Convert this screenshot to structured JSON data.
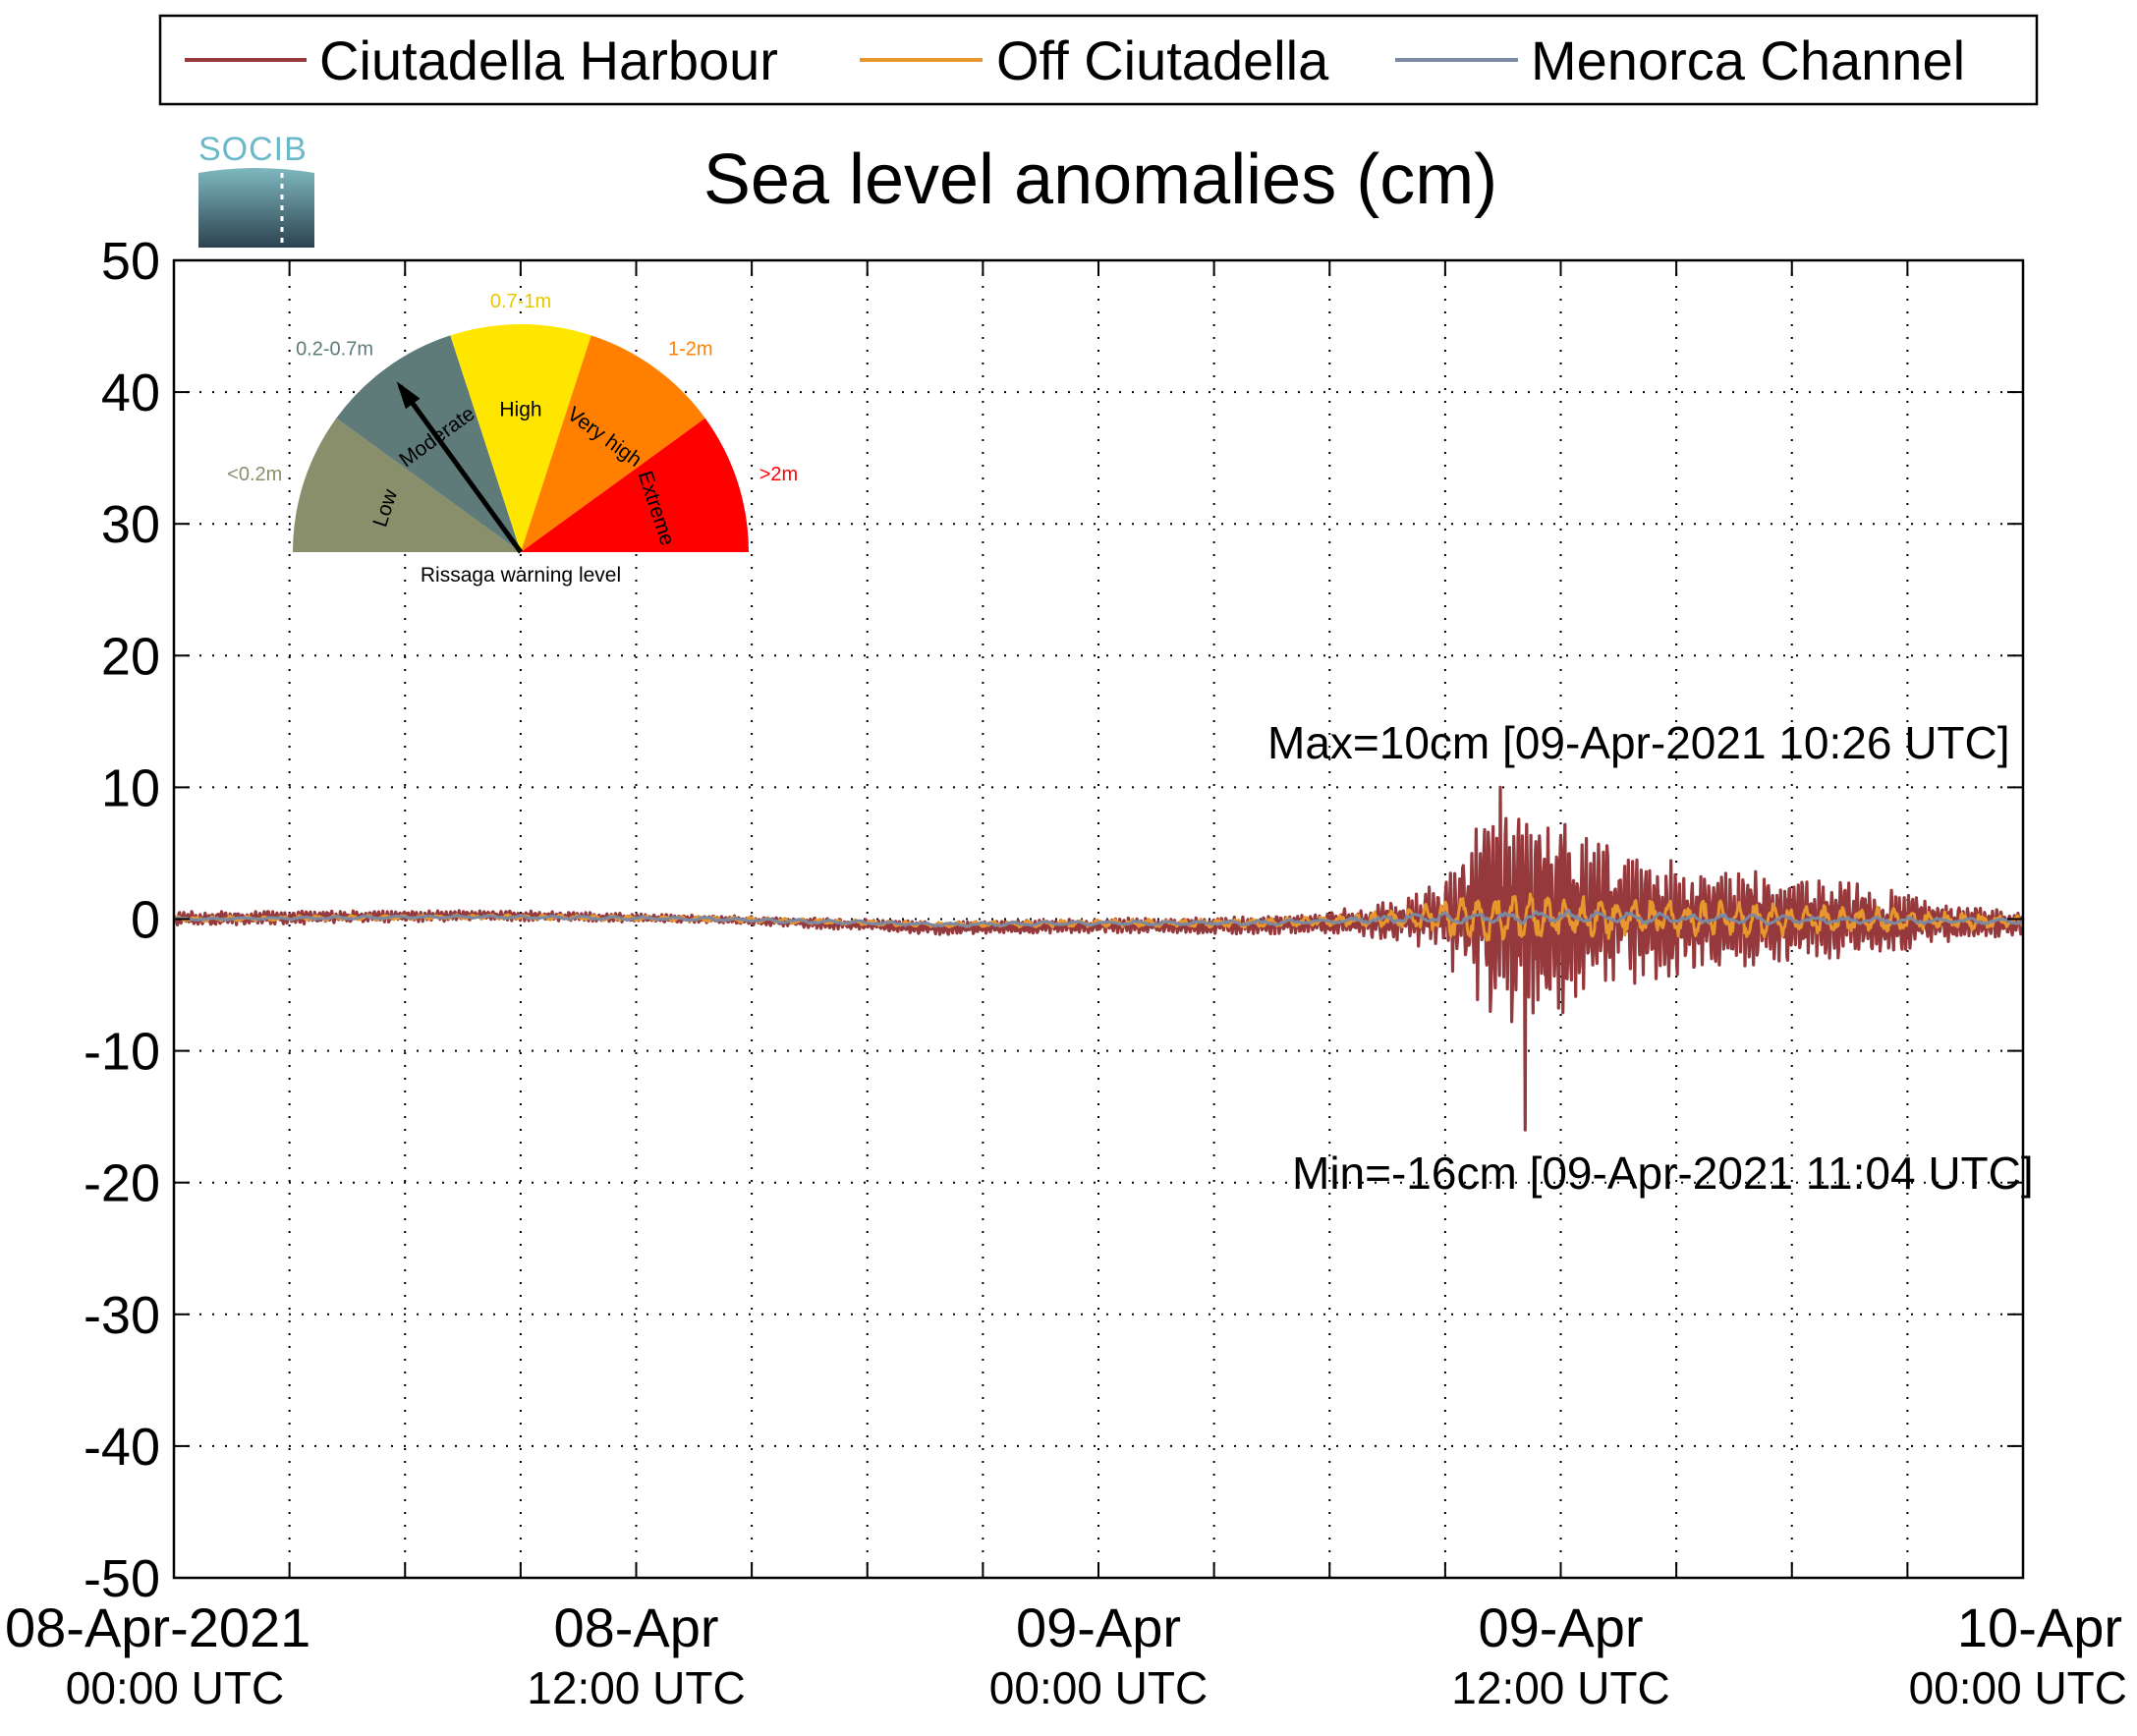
{
  "chart_data": {
    "type": "line",
    "title": "Sea level anomalies (cm)",
    "ylim": [
      -50,
      50
    ],
    "yticks": [
      -50,
      -40,
      -30,
      -20,
      -10,
      0,
      10,
      20,
      30,
      40,
      50
    ],
    "xlim_hours": [
      0,
      48
    ],
    "grid": true,
    "legend_position": "top",
    "xtick_labels": [
      {
        "hour": 0,
        "line1": "08-Apr-2021",
        "line2": "00:00 UTC"
      },
      {
        "hour": 12,
        "line1": "08-Apr",
        "line2": "12:00 UTC"
      },
      {
        "hour": 24,
        "line1": "09-Apr",
        "line2": "00:00 UTC"
      },
      {
        "hour": 36,
        "line1": "09-Apr",
        "line2": "12:00 UTC"
      },
      {
        "hour": 48,
        "line1": "10-Apr",
        "line2": "00:00 UTC"
      }
    ],
    "series": [
      {
        "name": "Ciutadella Harbour",
        "color": "#96393c",
        "amplitude_envelope": [
          [
            0,
            0.6
          ],
          [
            8,
            0.4
          ],
          [
            14,
            0.3
          ],
          [
            20,
            0.5
          ],
          [
            26,
            0.6
          ],
          [
            30,
            0.8
          ],
          [
            32,
            1.8
          ],
          [
            33,
            3
          ],
          [
            33.5,
            6
          ],
          [
            34,
            8
          ],
          [
            35,
            9
          ],
          [
            36,
            8
          ],
          [
            37,
            6
          ],
          [
            38,
            5
          ],
          [
            40,
            4
          ],
          [
            42,
            3.5
          ],
          [
            44,
            3
          ],
          [
            46,
            1.5
          ],
          [
            48,
            1
          ]
        ],
        "extremes": [
          {
            "x": 34.43,
            "y": 10
          },
          {
            "x": 35.07,
            "y": -16
          }
        ]
      },
      {
        "name": "Off Ciutadella",
        "color": "#e8962e",
        "amplitude_envelope": [
          [
            0,
            0.2
          ],
          [
            20,
            0.2
          ],
          [
            30,
            0.4
          ],
          [
            32,
            0.8
          ],
          [
            33,
            1.5
          ],
          [
            34,
            2
          ],
          [
            36,
            1.8
          ],
          [
            38,
            1.5
          ],
          [
            42,
            1.3
          ],
          [
            46,
            0.8
          ],
          [
            48,
            0.5
          ]
        ]
      },
      {
        "name": "Menorca Channel",
        "color": "#7b89a3",
        "amplitude_envelope": [
          [
            0,
            0.1
          ],
          [
            30,
            0.2
          ],
          [
            33,
            0.5
          ],
          [
            36,
            0.5
          ],
          [
            40,
            0.4
          ],
          [
            44,
            0.3
          ],
          [
            48,
            0.2
          ]
        ]
      }
    ],
    "baseline_trend": [
      [
        0,
        0
      ],
      [
        8,
        0.3
      ],
      [
        14,
        0
      ],
      [
        20,
        -0.7
      ],
      [
        24,
        -0.5
      ],
      [
        28,
        -0.5
      ],
      [
        32,
        0
      ],
      [
        36,
        0.3
      ],
      [
        40,
        0
      ],
      [
        48,
        -0.3
      ]
    ],
    "annotations": [
      {
        "id": "max",
        "text": "Max=10cm [09-Apr-2021 10:26 UTC]",
        "color": "#96393c"
      },
      {
        "id": "min",
        "text": "Min=-16cm [09-Apr-2021 11:04 UTC]",
        "color": "#96393c"
      }
    ]
  },
  "legend": [
    {
      "label": "Ciutadella Harbour",
      "color": "#96393c"
    },
    {
      "label": "Off Ciutadella",
      "color": "#e8962e"
    },
    {
      "label": "Menorca Channel",
      "color": "#7b89a3"
    }
  ],
  "logo": {
    "text": "SOCIB"
  },
  "gauge": {
    "caption": "Rissaga warning level",
    "needle_level": "Moderate",
    "segments": [
      {
        "name": "Low",
        "range": "<0.2m",
        "color": "#8a8f6b",
        "range_color": "#8a8f6b"
      },
      {
        "name": "Moderate",
        "range": "0.2-0.7m",
        "color": "#5e7a79",
        "range_color": "#5e7a79"
      },
      {
        "name": "High",
        "range": "0.7-1m",
        "color": "#ffe600",
        "range_color": "#e6c800"
      },
      {
        "name": "Very high",
        "range": "1-2m",
        "color": "#ff8000",
        "range_color": "#ff8000"
      },
      {
        "name": "Extreme",
        "range": ">2m",
        "color": "#ff0000",
        "range_color": "#ff0000"
      }
    ]
  }
}
